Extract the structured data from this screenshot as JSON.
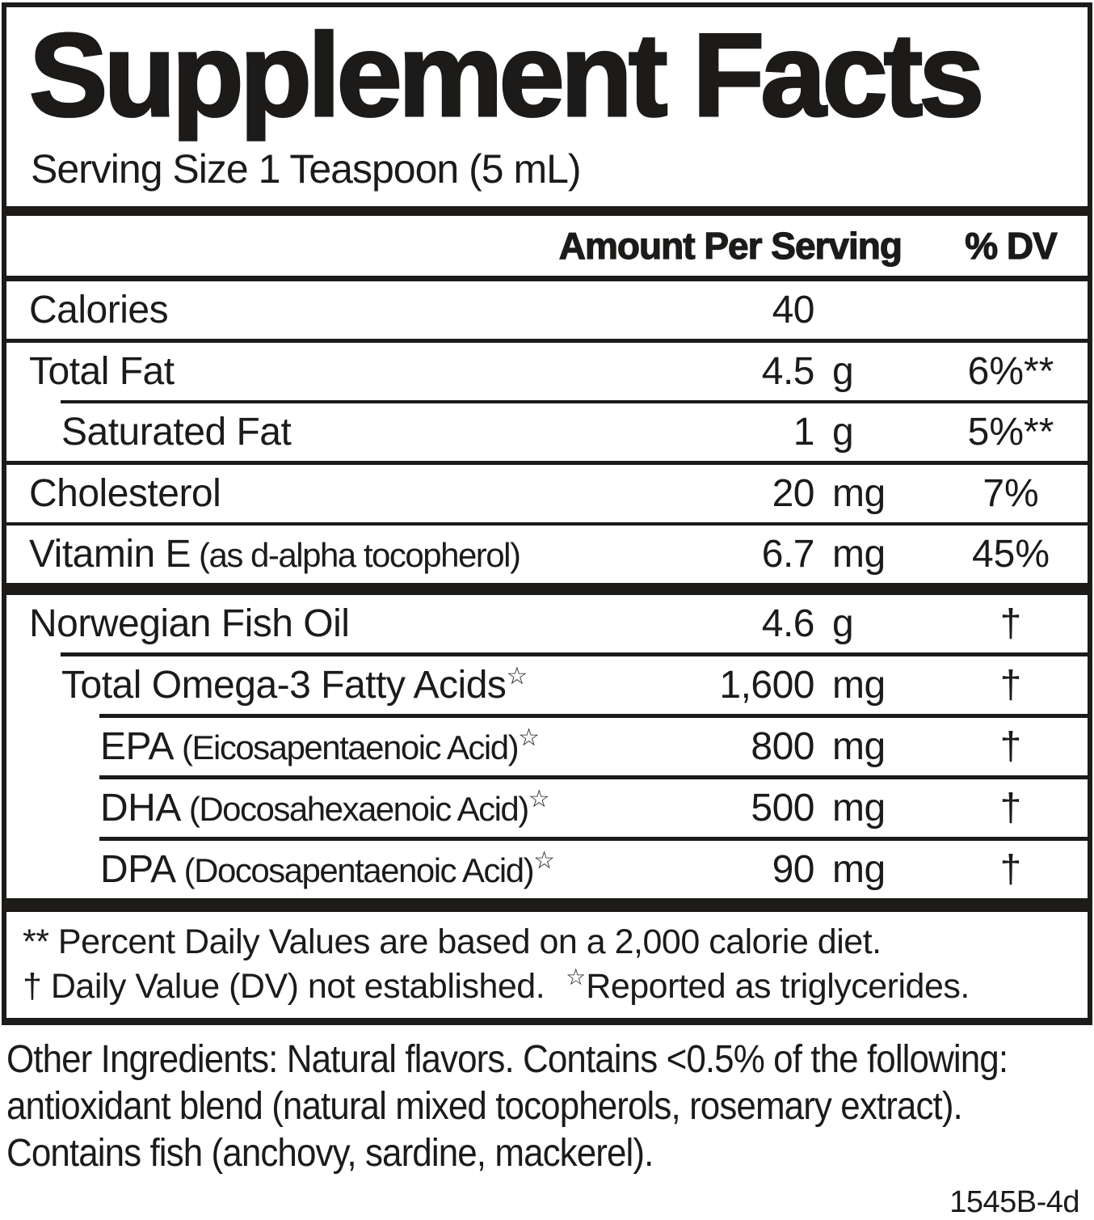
{
  "title": "Supplement Facts",
  "serving_size": "Serving Size 1 Teaspoon (5 mL)",
  "header": {
    "amount_label": "Amount Per Serving",
    "dv_label": "% DV"
  },
  "rows": [
    {
      "label": "Calories",
      "paren": "",
      "star": "",
      "amount": "40",
      "unit": "",
      "dv": "",
      "dvsuf": ""
    },
    {
      "label": "Total Fat",
      "paren": "",
      "star": "",
      "amount": "4.5",
      "unit": "g",
      "dv": "6%",
      "dvsuf": "**"
    },
    {
      "label": "Saturated Fat",
      "paren": "",
      "star": "",
      "amount": "1",
      "unit": "g",
      "dv": "5%",
      "dvsuf": "**"
    },
    {
      "label": "Cholesterol",
      "paren": "",
      "star": "",
      "amount": "20",
      "unit": "mg",
      "dv": "7%",
      "dvsuf": ""
    },
    {
      "label": "Vitamin E",
      "paren": "(as d-alpha tocopherol)",
      "star": "",
      "amount": "6.7",
      "unit": "mg",
      "dv": "45%",
      "dvsuf": ""
    },
    {
      "label": "Norwegian Fish Oil",
      "paren": "",
      "star": "",
      "amount": "4.6",
      "unit": "g",
      "dv": "†",
      "dvsuf": ""
    },
    {
      "label": "Total Omega-3 Fatty Acids",
      "paren": "",
      "star": "☆",
      "amount": "1,600",
      "unit": "mg",
      "dv": "†",
      "dvsuf": ""
    },
    {
      "label": "EPA",
      "paren": "(Eicosapentaenoic Acid)",
      "star": "☆",
      "amount": "800",
      "unit": "mg",
      "dv": "†",
      "dvsuf": ""
    },
    {
      "label": "DHA",
      "paren": "(Docosahexaenoic Acid)",
      "star": "☆",
      "amount": "500",
      "unit": "mg",
      "dv": "†",
      "dvsuf": ""
    },
    {
      "label": "DPA",
      "paren": "(Docosapentaenoic Acid)",
      "star": "☆",
      "amount": "90",
      "unit": "mg",
      "dv": "†",
      "dvsuf": ""
    }
  ],
  "footnotes": {
    "line1": "** Percent Daily Values are based on a 2,000 calorie diet.",
    "line2a": "† Daily Value (DV) not established.",
    "line2_star": "☆",
    "line2b": "Reported as triglycerides."
  },
  "other_ingredients": "Other Ingredients: Natural flavors. Contains <0.5% of the following: antioxidant blend (natural mixed tocopherols, rosemary extract). Contains fish (anchovy, sardine, mackerel).",
  "code": "1545B-4d"
}
